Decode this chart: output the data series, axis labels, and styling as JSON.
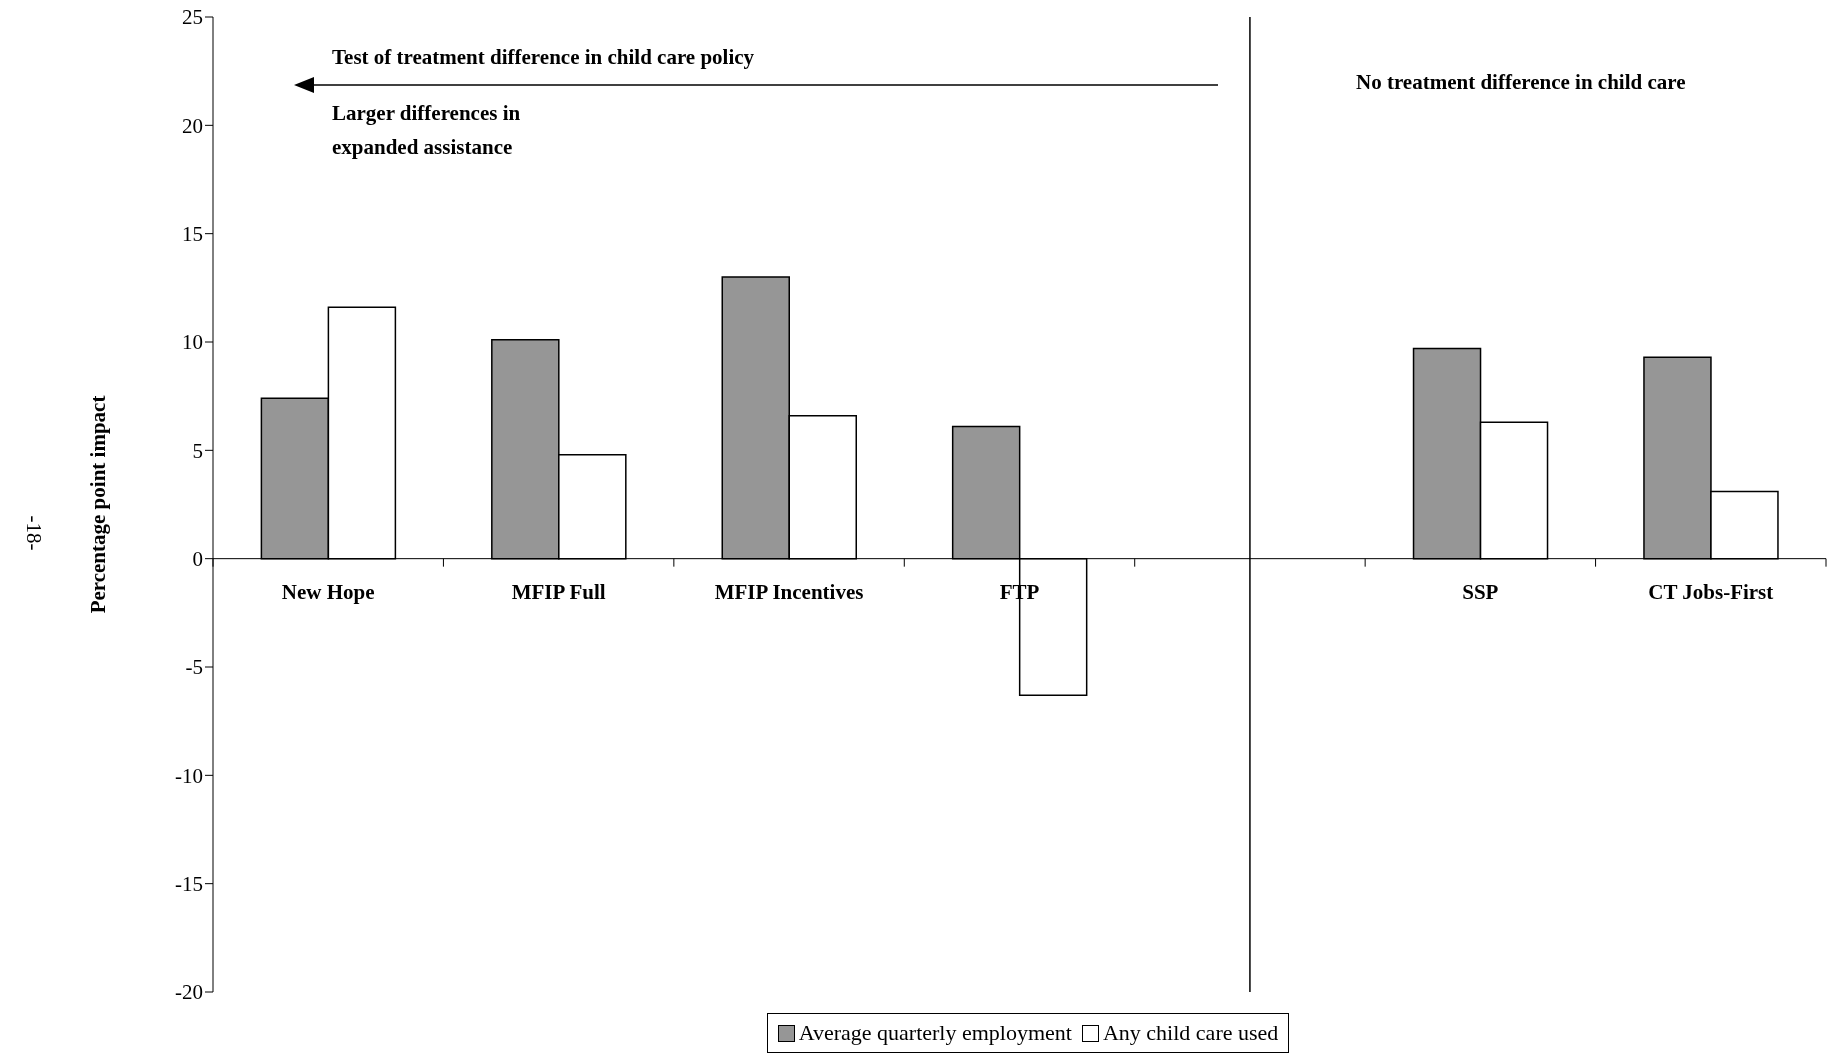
{
  "chart_data": {
    "type": "bar",
    "ylabel": "Percentage point impact",
    "categories": [
      "New Hope",
      "MFIP Full",
      "MFIP Incentives",
      "FTP",
      null,
      "SSP",
      "CT Jobs-First"
    ],
    "series": [
      {
        "name": "Average quarterly employment",
        "color": "#969696",
        "values": [
          7.4,
          10.1,
          13.0,
          6.1,
          null,
          9.7,
          9.3
        ]
      },
      {
        "name": "Any child care used",
        "color": "#ffffff",
        "values": [
          11.6,
          4.8,
          6.6,
          -6.3,
          null,
          6.3,
          3.1
        ]
      }
    ],
    "ylim": [
      -20,
      25
    ],
    "yticks": [
      -20,
      -15,
      -10,
      -5,
      0,
      5,
      10,
      15,
      20,
      25
    ],
    "legend": "bottom",
    "ref_lines": [
      {
        "axis": "x",
        "color": "#000000"
      }
    ],
    "annotations": [
      "Test of treatment difference in child care policy",
      "Larger differences in expanded assistance",
      "No treatment difference in child care",
      "-18-"
    ]
  }
}
